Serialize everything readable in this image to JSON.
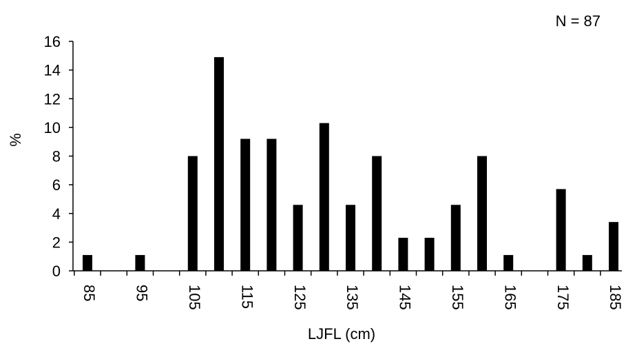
{
  "chart_data": {
    "type": "bar",
    "title": "",
    "annotation": "N = 87",
    "xlabel": "LJFL (cm)",
    "ylabel": "%",
    "ylim": [
      0,
      16
    ],
    "yticks": [
      0,
      2,
      4,
      6,
      8,
      10,
      12,
      14,
      16
    ],
    "categories": [
      "85",
      "90",
      "95",
      "100",
      "105",
      "110",
      "115",
      "120",
      "125",
      "130",
      "135",
      "140",
      "145",
      "150",
      "155",
      "160",
      "165",
      "170",
      "175",
      "180",
      "185"
    ],
    "x_tick_labels": [
      "85",
      "95",
      "105",
      "115",
      "125",
      "135",
      "145",
      "155",
      "165",
      "175",
      "185"
    ],
    "values": [
      1.1,
      0,
      1.1,
      0,
      8.0,
      14.9,
      9.2,
      9.2,
      4.6,
      10.3,
      4.6,
      8.0,
      2.3,
      2.3,
      4.6,
      8.0,
      1.1,
      0,
      5.7,
      1.1,
      3.4
    ],
    "bar_color": "#000000",
    "grid": false,
    "legend": "none"
  }
}
